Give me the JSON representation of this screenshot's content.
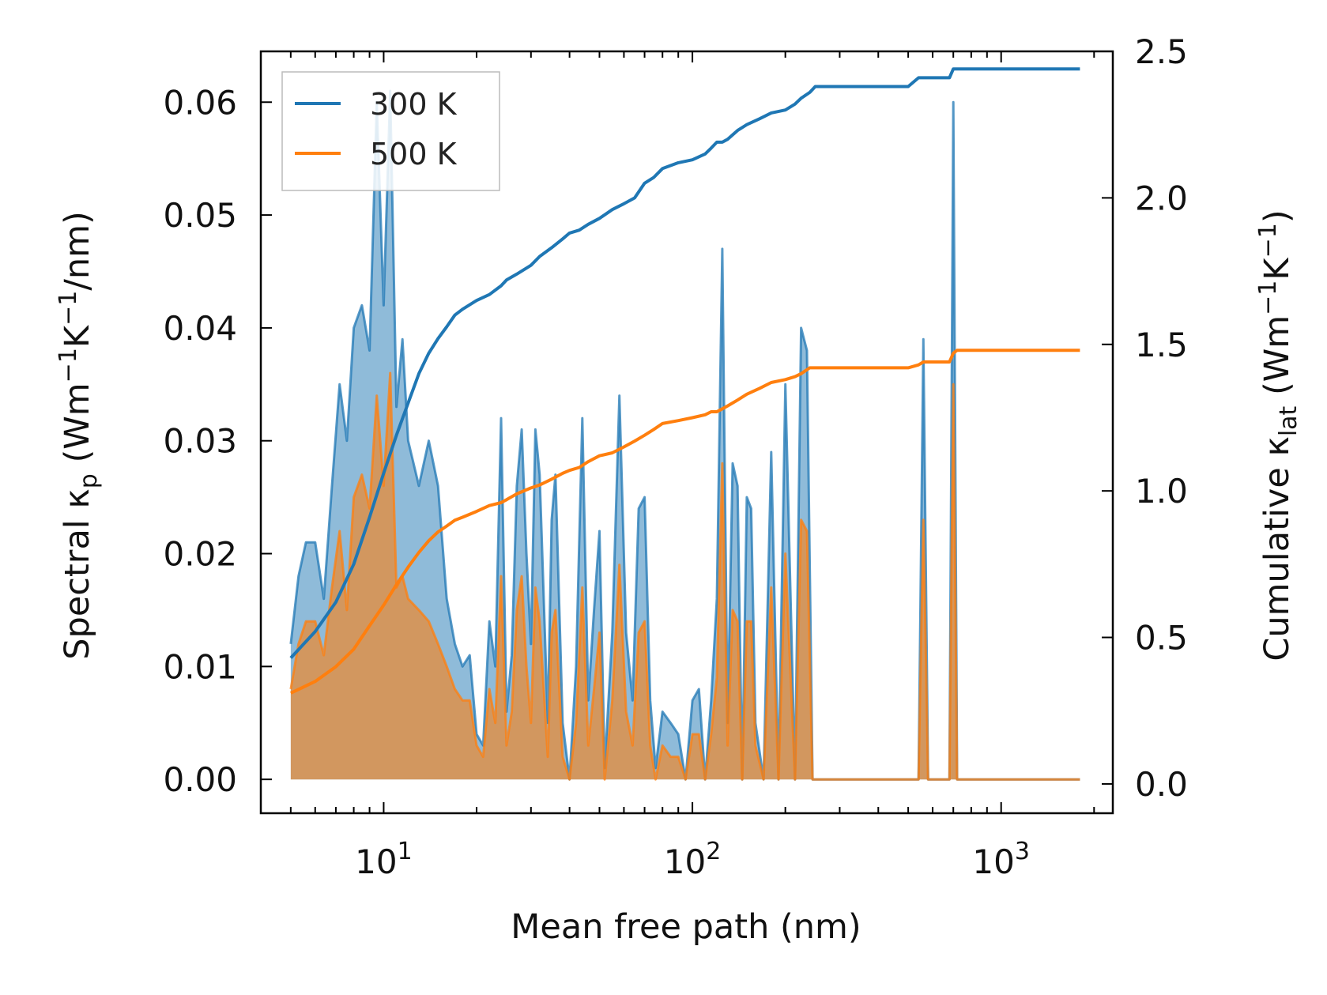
{
  "chart_data": {
    "type": "line",
    "xscale": "log",
    "xlabel": "Mean free path (nm)",
    "xlim": [
      4,
      2300
    ],
    "x_ticks": [
      {
        "value": 10,
        "base": "10",
        "exp": "1"
      },
      {
        "value": 100,
        "base": "10",
        "exp": "2"
      },
      {
        "value": 1000,
        "base": "10",
        "exp": "3"
      }
    ],
    "y_left": {
      "label": {
        "pre": "Spectral κ",
        "sub": "p",
        "mid": " (Wm",
        "sup1": "−1",
        "mid2": "K",
        "sup2": "−1",
        "post": "/nm)"
      },
      "lim": [
        -0.003,
        0.0645
      ],
      "ticks": [
        "0.00",
        "0.01",
        "0.02",
        "0.03",
        "0.04",
        "0.05",
        "0.06"
      ]
    },
    "y_right": {
      "label": {
        "pre": "Cumulative κ",
        "sub": "lat",
        "mid": " (Wm",
        "sup1": "−1",
        "mid2": "K",
        "sup2": "−1",
        "post": ")"
      },
      "lim": [
        -0.1,
        2.5
      ],
      "ticks": [
        "0.0",
        "0.5",
        "1.0",
        "1.5",
        "2.0",
        "2.5"
      ]
    },
    "legend": {
      "position": "top-left",
      "entries": [
        "300 K",
        "500 K"
      ]
    },
    "colors": {
      "300 K": "#1f77b4",
      "500 K": "#ff7f0e"
    },
    "spectral": {
      "x": [
        5,
        5.3,
        5.6,
        6.0,
        6.4,
        6.8,
        7.2,
        7.6,
        8.0,
        8.5,
        9.0,
        9.5,
        10.0,
        10.5,
        11.0,
        11.5,
        12.0,
        13.0,
        14.0,
        15.0,
        16.0,
        17.0,
        18.0,
        19.0,
        20.0,
        21.0,
        22.0,
        23.0,
        24.0,
        25.0,
        26.0,
        27.0,
        28.0,
        29.0,
        30.0,
        31.0,
        32.0,
        33.0,
        34.0,
        35.0,
        36.0,
        38.0,
        40.0,
        42.0,
        44.0,
        46.0,
        48.0,
        50.0,
        52.0,
        55.0,
        58.0,
        61.0,
        64.0,
        67.0,
        70.0,
        73.0,
        76.0,
        80.0,
        85.0,
        90.0,
        95.0,
        100.0,
        105.0,
        110.0,
        115.0,
        120.0,
        125.0,
        130.0,
        135.0,
        140.0,
        145.0,
        150.0,
        155.0,
        160.0,
        170.0,
        180.0,
        190.0,
        200.0,
        215.0,
        225.0,
        235.0,
        245.0,
        255.0,
        260.0,
        300,
        400,
        500,
        540,
        560,
        580,
        600,
        650,
        680,
        700,
        720,
        750,
        800,
        1000,
        1300,
        1600,
        1800
      ],
      "300 K": [
        0.012,
        0.018,
        0.021,
        0.021,
        0.016,
        0.026,
        0.035,
        0.03,
        0.04,
        0.042,
        0.038,
        0.06,
        0.042,
        0.061,
        0.033,
        0.039,
        0.03,
        0.026,
        0.03,
        0.026,
        0.016,
        0.012,
        0.01,
        0.011,
        0.004,
        0.003,
        0.014,
        0.01,
        0.032,
        0.006,
        0.011,
        0.026,
        0.031,
        0.02,
        0.012,
        0.031,
        0.027,
        0.016,
        0.005,
        0.023,
        0.027,
        0.005,
        0.0,
        0.01,
        0.032,
        0.007,
        0.015,
        0.022,
        0.001,
        0.013,
        0.034,
        0.013,
        0.007,
        0.024,
        0.025,
        0.007,
        0.001,
        0.006,
        0.005,
        0.004,
        0.0,
        0.007,
        0.008,
        0.0,
        0.007,
        0.016,
        0.047,
        0.005,
        0.028,
        0.026,
        0.0,
        0.025,
        0.024,
        0.005,
        0.0,
        0.029,
        0.0,
        0.035,
        0.0,
        0.04,
        0.038,
        0.0,
        0.0,
        0.0,
        0.0,
        0.0,
        0.0,
        0.0,
        0.039,
        0.0,
        0.0,
        0.0,
        0.0,
        0.06,
        0.0,
        0.0,
        0.0,
        0.0,
        0.0,
        0.0,
        0.0
      ],
      "500 K": [
        0.008,
        0.012,
        0.014,
        0.014,
        0.011,
        0.017,
        0.022,
        0.015,
        0.025,
        0.027,
        0.024,
        0.034,
        0.026,
        0.036,
        0.017,
        0.018,
        0.016,
        0.015,
        0.014,
        0.012,
        0.01,
        0.008,
        0.007,
        0.007,
        0.003,
        0.002,
        0.008,
        0.005,
        0.018,
        0.003,
        0.006,
        0.015,
        0.018,
        0.01,
        0.005,
        0.017,
        0.014,
        0.008,
        0.002,
        0.013,
        0.015,
        0.002,
        0.0,
        0.005,
        0.017,
        0.003,
        0.008,
        0.013,
        0.0,
        0.007,
        0.019,
        0.006,
        0.003,
        0.013,
        0.014,
        0.003,
        0.0,
        0.003,
        0.002,
        0.002,
        0.0,
        0.004,
        0.004,
        0.0,
        0.004,
        0.009,
        0.028,
        0.003,
        0.015,
        0.014,
        0.0,
        0.014,
        0.014,
        0.003,
        0.0,
        0.017,
        0.0,
        0.02,
        0.0,
        0.023,
        0.022,
        0.0,
        0.0,
        0.0,
        0.0,
        0.0,
        0.0,
        0.0,
        0.023,
        0.0,
        0.0,
        0.0,
        0.0,
        0.035,
        0.0,
        0.0,
        0.0,
        0.0,
        0.0,
        0.0,
        0.0
      ]
    },
    "cumulative": {
      "x": [
        5,
        6,
        7,
        8,
        9,
        10,
        11,
        12,
        13,
        14,
        15,
        16,
        17,
        18,
        20,
        22,
        24,
        25,
        27,
        30,
        32,
        35,
        38,
        40,
        43,
        46,
        50,
        55,
        60,
        65,
        70,
        75,
        80,
        90,
        100,
        110,
        115,
        120,
        125,
        130,
        140,
        150,
        165,
        180,
        200,
        215,
        225,
        240,
        250,
        500,
        540,
        560,
        600,
        680,
        700,
        720,
        1800
      ],
      "300 K": [
        0.43,
        0.52,
        0.62,
        0.75,
        0.91,
        1.06,
        1.19,
        1.3,
        1.4,
        1.47,
        1.52,
        1.56,
        1.6,
        1.62,
        1.65,
        1.67,
        1.7,
        1.72,
        1.74,
        1.77,
        1.8,
        1.83,
        1.86,
        1.88,
        1.89,
        1.91,
        1.93,
        1.96,
        1.98,
        2.0,
        2.05,
        2.07,
        2.1,
        2.12,
        2.13,
        2.15,
        2.17,
        2.19,
        2.19,
        2.2,
        2.23,
        2.25,
        2.27,
        2.29,
        2.3,
        2.32,
        2.34,
        2.36,
        2.38,
        2.38,
        2.41,
        2.41,
        2.41,
        2.41,
        2.44,
        2.44,
        2.44
      ],
      "500 K": [
        0.31,
        0.35,
        0.4,
        0.46,
        0.54,
        0.61,
        0.68,
        0.74,
        0.79,
        0.83,
        0.86,
        0.88,
        0.9,
        0.91,
        0.93,
        0.95,
        0.96,
        0.97,
        0.99,
        1.01,
        1.02,
        1.04,
        1.06,
        1.07,
        1.08,
        1.1,
        1.12,
        1.13,
        1.15,
        1.17,
        1.19,
        1.21,
        1.23,
        1.24,
        1.25,
        1.26,
        1.27,
        1.27,
        1.28,
        1.29,
        1.31,
        1.33,
        1.35,
        1.37,
        1.38,
        1.39,
        1.4,
        1.42,
        1.42,
        1.42,
        1.43,
        1.44,
        1.44,
        1.44,
        1.47,
        1.48,
        1.48
      ]
    }
  }
}
